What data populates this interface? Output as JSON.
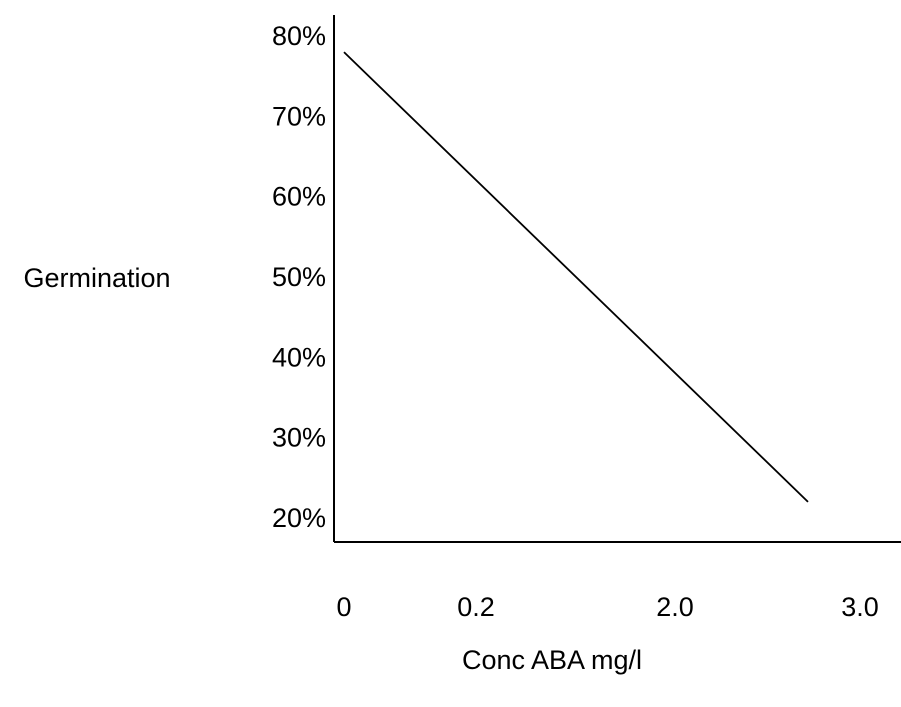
{
  "chart_data": {
    "type": "line",
    "title": "",
    "xlabel": "Conc ABA mg/l",
    "ylabel": "Germination",
    "x_ticks": [
      "0",
      "0.2",
      "2.0",
      "3.0"
    ],
    "y_ticks": [
      "20%",
      "30%",
      "40%",
      "50%",
      "60%",
      "70%",
      "80%"
    ],
    "y_tick_values": [
      20,
      30,
      40,
      50,
      60,
      70,
      80
    ],
    "ylim": [
      17,
      82
    ],
    "x_scale": "categorical (unevenly spaced)",
    "series": [
      {
        "x": [
          "0",
          "2.9"
        ],
        "y": [
          78,
          22
        ]
      }
    ],
    "grid": false,
    "legend": "none",
    "line_color": "#000000",
    "axis_color": "#000000"
  }
}
